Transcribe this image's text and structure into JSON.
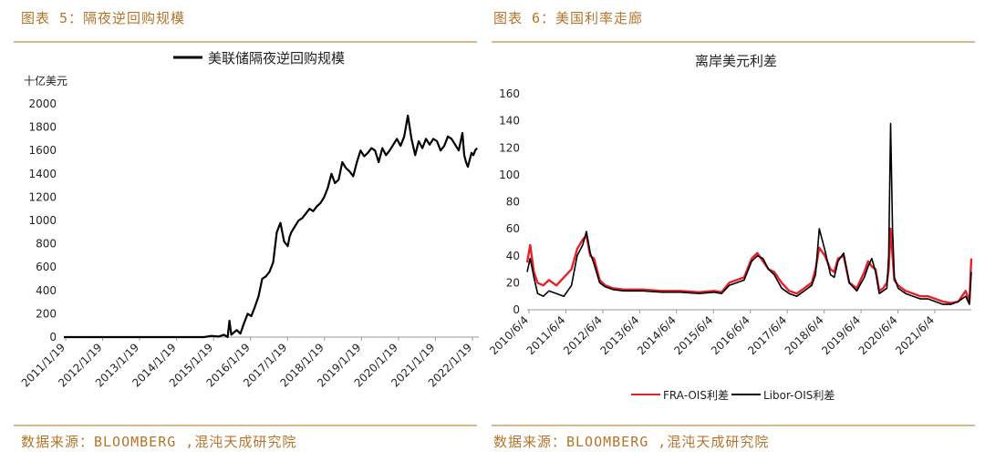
{
  "left": {
    "panel_title": "图表 5：隔夜逆回购规模",
    "source": "数据来源：BLOOMBERG ,混沌天成研究院"
  },
  "right": {
    "panel_title": "图表 6：美国利率走廊",
    "source": "数据来源：BLOOMBERG ,混沌天成研究院"
  },
  "colors": {
    "accent": "#b4742a",
    "rule": "#d9b98c",
    "series_black": "#000000",
    "series_red": "#e8202a"
  },
  "chart_data": [
    {
      "type": "line",
      "title": "",
      "ylabel": "十亿美元",
      "ylim": [
        0,
        2000
      ],
      "yticks": [
        0,
        200,
        400,
        600,
        800,
        1000,
        1200,
        1400,
        1600,
        1800,
        2000
      ],
      "xticks": [
        "2011/1/19",
        "2012/1/19",
        "2013/1/19",
        "2014/1/19",
        "2015/1/19",
        "2016/1/19",
        "2017/1/19",
        "2018/1/19",
        "2019/1/19",
        "2020/1/19",
        "2021/1/19",
        "2022/1/19"
      ],
      "xlim": [
        2011.05,
        2022.45
      ],
      "series": [
        {
          "name": "美联储隔夜逆回购规模",
          "color": "#000000",
          "x": [
            2011.05,
            2012.0,
            2013.0,
            2014.0,
            2014.9,
            2015.1,
            2015.3,
            2015.45,
            2015.55,
            2015.6,
            2015.65,
            2015.72,
            2015.8,
            2015.9,
            2016.0,
            2016.1,
            2016.2,
            2016.3,
            2016.4,
            2016.5,
            2016.6,
            2016.7,
            2016.8,
            2016.9,
            2017.0,
            2017.1,
            2017.2,
            2017.25,
            2017.3,
            2017.4,
            2017.5,
            2017.6,
            2017.7,
            2017.8,
            2017.9,
            2018.0,
            2018.1,
            2018.2,
            2018.3,
            2018.4,
            2018.5,
            2018.6,
            2018.7,
            2018.8,
            2018.9,
            2019.0,
            2019.1,
            2019.2,
            2019.3,
            2019.4,
            2019.5,
            2019.6,
            2019.7,
            2019.8,
            2019.9,
            2020.0,
            2020.1,
            2020.2,
            2020.3,
            2020.4,
            2020.5,
            2020.6,
            2020.7,
            2020.8,
            2020.9,
            2021.0,
            2021.1,
            2021.2,
            2021.3,
            2021.4,
            2021.5,
            2021.6,
            2021.7,
            2021.8,
            2021.9,
            2022.0,
            2022.05,
            2022.1,
            2022.15,
            2022.2,
            2022.25,
            2022.3,
            2022.35,
            2022.4
          ],
          "y": [
            0,
            0,
            0,
            0,
            0,
            10,
            5,
            20,
            0,
            140,
            20,
            40,
            60,
            30,
            120,
            200,
            180,
            260,
            350,
            500,
            520,
            560,
            640,
            900,
            980,
            820,
            780,
            860,
            900,
            950,
            1000,
            1020,
            1060,
            1100,
            1080,
            1120,
            1150,
            1200,
            1280,
            1400,
            1320,
            1350,
            1500,
            1450,
            1420,
            1380,
            1500,
            1600,
            1550,
            1580,
            1620,
            1600,
            1500,
            1620,
            1560,
            1600,
            1650,
            1700,
            1640,
            1720,
            1900,
            1700,
            1560,
            1680,
            1620,
            1700,
            1650,
            1700,
            1680,
            1600,
            1640,
            1720,
            1700,
            1650,
            1600,
            1750,
            1560,
            1500,
            1460,
            1520,
            1580,
            1560,
            1600,
            1620
          ]
        }
      ]
    },
    {
      "type": "line",
      "title": "离岸美元利差",
      "ylim": [
        0,
        160
      ],
      "yticks": [
        0,
        20,
        40,
        60,
        80,
        100,
        120,
        140,
        160
      ],
      "xticks": [
        "2010/6/4",
        "2011/6/4",
        "2012/6/4",
        "2013/6/4",
        "2014/6/4",
        "2015/6/4",
        "2016/6/4",
        "2017/6/4",
        "2018/6/4",
        "2019/6/4",
        "2020/6/4",
        "2021/6/4"
      ],
      "xlim": [
        2010.42,
        2022.25
      ],
      "legend": "bottom",
      "series": [
        {
          "name": "FRA-OIS利差",
          "color": "#e8202a",
          "x": [
            2010.42,
            2010.5,
            2010.6,
            2010.7,
            2010.85,
            2011.0,
            2011.2,
            2011.4,
            2011.6,
            2011.75,
            2011.9,
            2012.0,
            2012.1,
            2012.2,
            2012.35,
            2012.5,
            2012.7,
            2013.0,
            2013.5,
            2014.0,
            2014.5,
            2015.0,
            2015.4,
            2015.6,
            2015.8,
            2016.0,
            2016.2,
            2016.4,
            2016.55,
            2016.7,
            2016.85,
            2017.0,
            2017.2,
            2017.4,
            2017.6,
            2017.8,
            2018.0,
            2018.1,
            2018.2,
            2018.35,
            2018.5,
            2018.6,
            2018.7,
            2018.85,
            2019.0,
            2019.2,
            2019.4,
            2019.5,
            2019.6,
            2019.7,
            2019.8,
            2019.9,
            2020.0,
            2020.05,
            2020.1,
            2020.15,
            2020.2,
            2020.3,
            2020.5,
            2020.7,
            2020.9,
            2021.1,
            2021.3,
            2021.5,
            2021.7,
            2021.9,
            2022.0,
            2022.1,
            2022.2,
            2022.25
          ],
          "y": [
            35,
            48,
            28,
            20,
            18,
            22,
            18,
            24,
            30,
            45,
            52,
            55,
            40,
            38,
            22,
            18,
            16,
            15,
            15,
            14,
            14,
            13,
            14,
            13,
            20,
            22,
            24,
            38,
            42,
            36,
            30,
            28,
            20,
            14,
            12,
            16,
            20,
            30,
            46,
            40,
            30,
            28,
            38,
            40,
            20,
            16,
            28,
            36,
            32,
            30,
            14,
            16,
            20,
            30,
            60,
            40,
            22,
            18,
            14,
            12,
            10,
            10,
            8,
            6,
            5,
            6,
            10,
            14,
            6,
            38
          ]
        },
        {
          "name": "Libor-OIS利差",
          "color": "#000000",
          "x": [
            2010.42,
            2010.5,
            2010.6,
            2010.7,
            2010.85,
            2011.0,
            2011.2,
            2011.4,
            2011.6,
            2011.75,
            2011.9,
            2012.0,
            2012.1,
            2012.2,
            2012.35,
            2012.5,
            2012.7,
            2013.0,
            2013.5,
            2014.0,
            2014.5,
            2015.0,
            2015.4,
            2015.6,
            2015.8,
            2016.0,
            2016.2,
            2016.4,
            2016.55,
            2016.7,
            2016.85,
            2017.0,
            2017.2,
            2017.4,
            2017.6,
            2017.8,
            2018.0,
            2018.1,
            2018.2,
            2018.35,
            2018.5,
            2018.6,
            2018.7,
            2018.85,
            2019.0,
            2019.2,
            2019.4,
            2019.5,
            2019.6,
            2019.7,
            2019.8,
            2019.9,
            2020.0,
            2020.05,
            2020.1,
            2020.15,
            2020.2,
            2020.3,
            2020.5,
            2020.7,
            2020.9,
            2021.1,
            2021.3,
            2021.5,
            2021.7,
            2021.9,
            2022.0,
            2022.1,
            2022.2,
            2022.25
          ],
          "y": [
            28,
            38,
            24,
            12,
            10,
            14,
            12,
            10,
            18,
            40,
            48,
            58,
            42,
            34,
            20,
            17,
            15,
            14,
            14,
            13,
            13,
            12,
            13,
            12,
            18,
            20,
            22,
            36,
            40,
            38,
            30,
            26,
            16,
            12,
            10,
            14,
            18,
            26,
            60,
            44,
            26,
            24,
            36,
            42,
            20,
            14,
            24,
            32,
            38,
            28,
            12,
            14,
            16,
            40,
            138,
            60,
            24,
            16,
            12,
            10,
            8,
            8,
            6,
            4,
            4,
            6,
            8,
            10,
            4,
            28
          ]
        }
      ]
    }
  ]
}
